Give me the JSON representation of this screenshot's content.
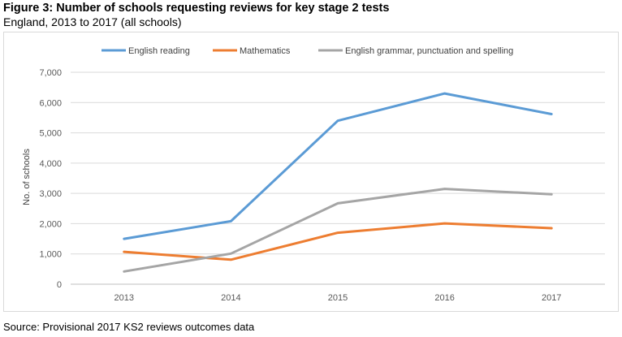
{
  "figure": {
    "title": "Figure 3: Number of schools requesting reviews for key stage 2 tests",
    "subtitle": "England, 2013 to 2017 (all schools)",
    "source": "Source: Provisional 2017 KS2 reviews outcomes data"
  },
  "chart_data": {
    "type": "line",
    "x": [
      "2013",
      "2014",
      "2015",
      "2016",
      "2017"
    ],
    "series": [
      {
        "name": "English reading",
        "color": "#5b9bd5",
        "values": [
          1500,
          2080,
          5400,
          6300,
          5620
        ]
      },
      {
        "name": "Mathematics",
        "color": "#ed7d31",
        "values": [
          1070,
          810,
          1700,
          2010,
          1850
        ]
      },
      {
        "name": "English grammar, punctuation and spelling",
        "color": "#a5a5a5",
        "values": [
          420,
          1010,
          2670,
          3150,
          2970
        ]
      }
    ],
    "title": "",
    "xlabel": "",
    "ylabel": "No. of schools",
    "ylim": [
      0,
      7000
    ],
    "yticks": [
      0,
      1000,
      2000,
      3000,
      4000,
      5000,
      6000,
      7000
    ],
    "ytick_labels": [
      "0",
      "1,000",
      "2,000",
      "3,000",
      "4,000",
      "5,000",
      "6,000",
      "7,000"
    ],
    "grid": true,
    "legend_position": "top"
  }
}
